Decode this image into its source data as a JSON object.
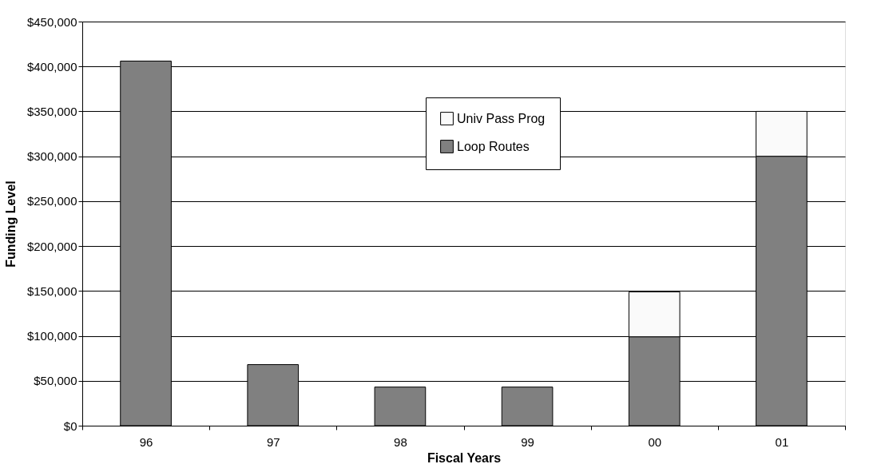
{
  "chart_data": {
    "type": "bar",
    "stacked": true,
    "xlabel": "Fiscal Years",
    "ylabel": "Funding Level",
    "categories": [
      "96",
      "97",
      "98",
      "99",
      "00",
      "01"
    ],
    "series": [
      {
        "name": "Loop Routes",
        "color": "#808080",
        "values": [
          406000,
          68000,
          43000,
          43000,
          99000,
          300000
        ]
      },
      {
        "name": "Univ Pass Prog",
        "color": "#fafafa",
        "values": [
          null,
          null,
          null,
          null,
          50000,
          50000
        ]
      }
    ],
    "ylim": [
      0,
      450000
    ],
    "yticks": [
      {
        "value": 0,
        "label": "$0"
      },
      {
        "value": 50000,
        "label": "$50,000"
      },
      {
        "value": 100000,
        "label": "$100,000"
      },
      {
        "value": 150000,
        "label": "$150,000"
      },
      {
        "value": 200000,
        "label": "$200,000"
      },
      {
        "value": 250000,
        "label": "$250,000"
      },
      {
        "value": 300000,
        "label": "$300,000"
      },
      {
        "value": 350000,
        "label": "$350,000"
      },
      {
        "value": 400000,
        "label": "$400,000"
      },
      {
        "value": 450000,
        "label": "$450,000"
      }
    ],
    "grid": "y",
    "legend": "top right"
  }
}
